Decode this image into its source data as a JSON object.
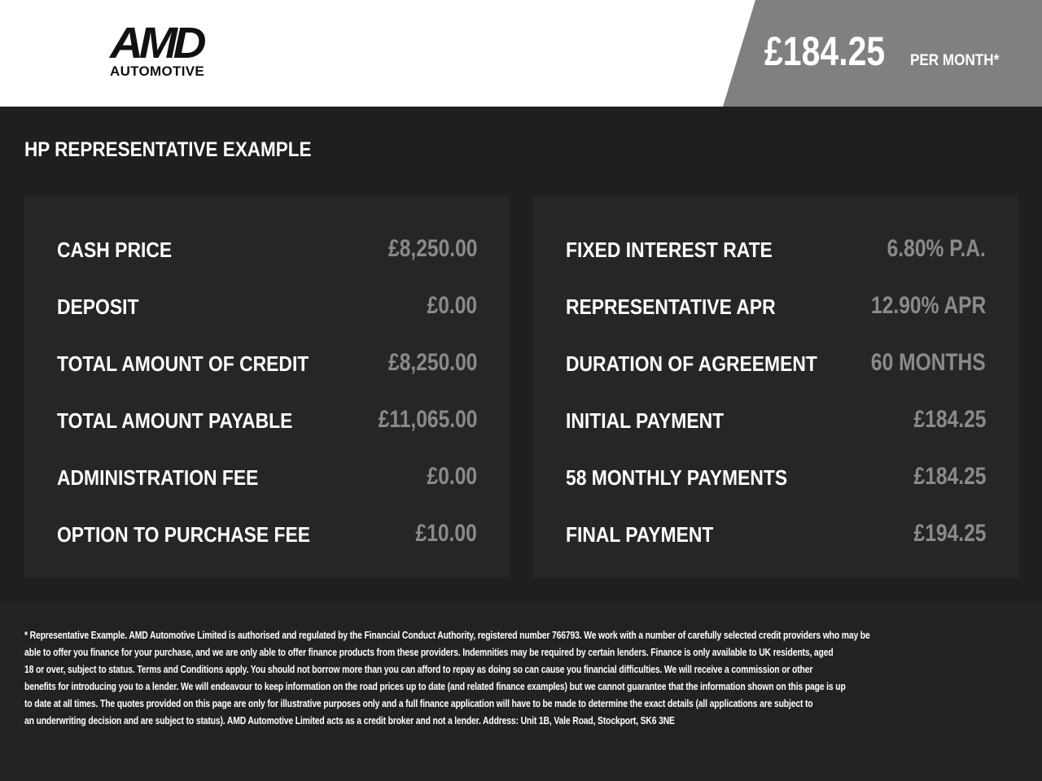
{
  "header": {
    "logo_text": "AMD",
    "logo_subtext": "AUTOMOTIVE",
    "price": "£184.25",
    "price_suffix": "PER MONTH*"
  },
  "title": "HP REPRESENTATIVE EXAMPLE",
  "left": [
    {
      "label": "CASH PRICE",
      "value": "£8,250.00"
    },
    {
      "label": "DEPOSIT",
      "value": "£0.00"
    },
    {
      "label": "TOTAL AMOUNT OF CREDIT",
      "value": "£8,250.00"
    },
    {
      "label": "TOTAL AMOUNT PAYABLE",
      "value": "£11,065.00"
    },
    {
      "label": "ADMINISTRATION FEE",
      "value": "£0.00"
    },
    {
      "label": "OPTION TO PURCHASE FEE",
      "value": "£10.00"
    }
  ],
  "right": [
    {
      "label": "FIXED INTEREST RATE",
      "value": "6.80% P.A."
    },
    {
      "label": "REPRESENTATIVE APR",
      "value": "12.90% APR"
    },
    {
      "label": "DURATION OF AGREEMENT",
      "value": "60 MONTHS"
    },
    {
      "label": "INITIAL PAYMENT",
      "value": "£184.25"
    },
    {
      "label": "58 MONTHLY PAYMENTS",
      "value": "£184.25"
    },
    {
      "label": "FINAL PAYMENT",
      "value": "£194.25"
    }
  ],
  "disclaimer": [
    "* Representative Example. AMD Automotive Limited is authorised and regulated by the Financial Conduct Authority, registered number 766793. We work with a number of carefully selected credit providers who may be",
    "able to offer you finance for your purchase, and we are only able to offer finance products from these providers. Indemnities may be required by certain lenders. Finance is only available to UK residents, aged",
    "18 or over, subject to status. Terms and Conditions apply. You should not borrow more than you can afford to repay as doing so can cause you financial difficulties. We will receive a commission or other",
    "benefits for introducing you to a lender. We will endeavour to keep information on the road prices up to date (and related finance examples) but we cannot guarantee that the information shown on this page is up",
    "to date at all times. The quotes provided on this page are only for illustrative purposes only and a full finance application will have to be made to determine the exact details (all applications are subject to",
    "an underwriting decision and are subject to status). AMD Automotive Limited acts as a credit broker and not a lender. Address: Unit 1B, Vale Road, Stockport, SK6 3NE"
  ]
}
